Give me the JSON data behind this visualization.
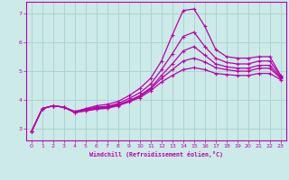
{
  "xlabel": "Windchill (Refroidissement éolien,°C)",
  "ylabel": "",
  "bg_color": "#cceae8",
  "grid_color": "#aad4d0",
  "line_color": "#bb00aa",
  "xlim": [
    -0.5,
    23.5
  ],
  "ylim": [
    2.6,
    7.4
  ],
  "xticks": [
    0,
    1,
    2,
    3,
    4,
    5,
    6,
    7,
    8,
    9,
    10,
    11,
    12,
    13,
    14,
    15,
    16,
    17,
    18,
    19,
    20,
    21,
    22,
    23
  ],
  "yticks": [
    3,
    4,
    5,
    6,
    7
  ],
  "lines": [
    {
      "x": [
        0,
        1,
        2,
        3,
        4,
        5,
        6,
        7,
        8,
        9,
        10,
        11,
        12,
        13,
        14,
        15,
        16,
        17,
        18,
        19,
        20,
        21,
        22,
        23
      ],
      "y": [
        2.9,
        3.7,
        3.8,
        3.75,
        3.6,
        3.7,
        3.8,
        3.85,
        3.95,
        4.15,
        4.4,
        4.75,
        5.35,
        6.25,
        7.1,
        7.15,
        6.55,
        5.75,
        5.5,
        5.45,
        5.45,
        5.5,
        5.5,
        4.85
      ]
    },
    {
      "x": [
        0,
        1,
        2,
        3,
        4,
        5,
        6,
        7,
        8,
        9,
        10,
        11,
        12,
        13,
        14,
        15,
        16,
        17,
        18,
        19,
        20,
        21,
        22,
        23
      ],
      "y": [
        2.9,
        3.7,
        3.8,
        3.75,
        3.6,
        3.68,
        3.75,
        3.78,
        3.88,
        4.05,
        4.25,
        4.55,
        5.05,
        5.6,
        6.2,
        6.35,
        5.85,
        5.45,
        5.3,
        5.25,
        5.25,
        5.35,
        5.35,
        4.82
      ]
    },
    {
      "x": [
        0,
        1,
        2,
        3,
        4,
        5,
        6,
        7,
        8,
        9,
        10,
        11,
        12,
        13,
        14,
        15,
        16,
        17,
        18,
        19,
        20,
        21,
        22,
        23
      ],
      "y": [
        2.9,
        3.7,
        3.8,
        3.75,
        3.58,
        3.65,
        3.72,
        3.75,
        3.84,
        3.98,
        4.15,
        4.42,
        4.85,
        5.25,
        5.7,
        5.85,
        5.55,
        5.25,
        5.15,
        5.1,
        5.1,
        5.2,
        5.2,
        4.78
      ]
    },
    {
      "x": [
        0,
        1,
        2,
        3,
        4,
        5,
        6,
        7,
        8,
        9,
        10,
        11,
        12,
        13,
        14,
        15,
        16,
        17,
        18,
        19,
        20,
        21,
        22,
        23
      ],
      "y": [
        2.9,
        3.7,
        3.8,
        3.75,
        3.57,
        3.63,
        3.7,
        3.73,
        3.82,
        3.96,
        4.12,
        4.38,
        4.75,
        5.05,
        5.35,
        5.45,
        5.32,
        5.12,
        5.05,
        5.0,
        5.0,
        5.1,
        5.1,
        4.75
      ]
    },
    {
      "x": [
        0,
        1,
        2,
        3,
        4,
        5,
        6,
        7,
        8,
        9,
        10,
        11,
        12,
        13,
        14,
        15,
        16,
        17,
        18,
        19,
        20,
        21,
        22,
        23
      ],
      "y": [
        2.9,
        3.7,
        3.8,
        3.75,
        3.56,
        3.62,
        3.68,
        3.71,
        3.8,
        3.93,
        4.08,
        4.32,
        4.62,
        4.85,
        5.05,
        5.12,
        5.05,
        4.92,
        4.88,
        4.85,
        4.85,
        4.92,
        4.92,
        4.7
      ]
    }
  ]
}
